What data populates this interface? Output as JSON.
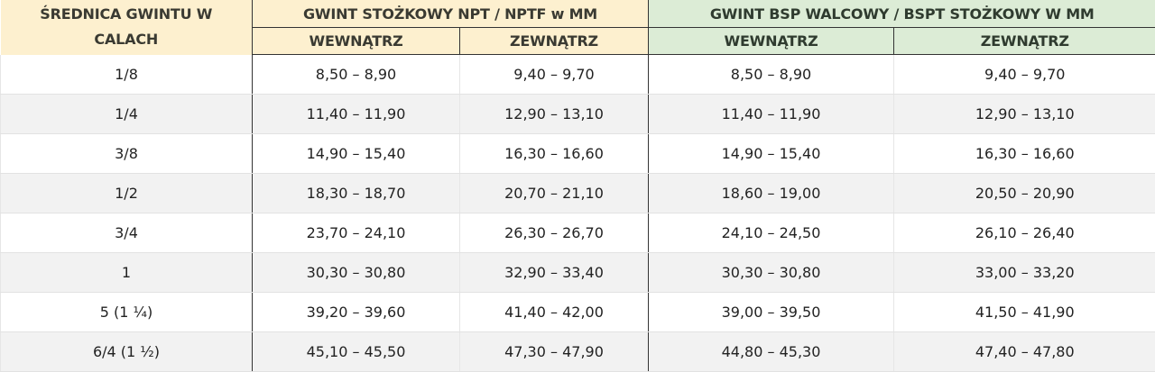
{
  "header": {
    "diameter": "ŚREDNICA GWINTU W CALACH",
    "npt_group": "GWINT STOŻKOWY NPT / NPTF w MM",
    "bsp_group": "GWINT BSP WALCOWY / BSPT STOŻKOWY W MM",
    "inner": "WEWNĄTRZ",
    "outer": "ZEWNĄTRZ"
  },
  "colors": {
    "npt_header": "#fdf0cf",
    "bsp_header": "#dcecd6"
  },
  "rows": [
    {
      "size": "1/8",
      "npt_in": "8,50 – 8,90",
      "npt_out": "9,40 – 9,70",
      "bsp_in": "8,50 – 8,90",
      "bsp_out": "9,40 – 9,70"
    },
    {
      "size": "1/4",
      "npt_in": "11,40 – 11,90",
      "npt_out": "12,90 – 13,10",
      "bsp_in": "11,40 – 11,90",
      "bsp_out": "12,90 – 13,10"
    },
    {
      "size": "3/8",
      "npt_in": "14,90 – 15,40",
      "npt_out": "16,30 – 16,60",
      "bsp_in": "14,90 – 15,40",
      "bsp_out": "16,30 – 16,60"
    },
    {
      "size": "1/2",
      "npt_in": "18,30 – 18,70",
      "npt_out": "20,70 – 21,10",
      "bsp_in": "18,60 – 19,00",
      "bsp_out": "20,50 – 20,90"
    },
    {
      "size": "3/4",
      "npt_in": "23,70 – 24,10",
      "npt_out": "26,30 – 26,70",
      "bsp_in": "24,10 – 24,50",
      "bsp_out": "26,10 – 26,40"
    },
    {
      "size": "1",
      "npt_in": "30,30 – 30,80",
      "npt_out": "32,90 – 33,40",
      "bsp_in": "30,30 – 30,80",
      "bsp_out": "33,00 – 33,20"
    },
    {
      "size": "5 (1 ¼)",
      "npt_in": "39,20 – 39,60",
      "npt_out": "41,40 – 42,00",
      "bsp_in": "39,00 – 39,50",
      "bsp_out": "41,50 – 41,90"
    },
    {
      "size": "6/4 (1 ½)",
      "npt_in": "45,10 – 45,50",
      "npt_out": "47,30 – 47,90",
      "bsp_in": "44,80 – 45,30",
      "bsp_out": "47,40 – 47,80"
    }
  ]
}
